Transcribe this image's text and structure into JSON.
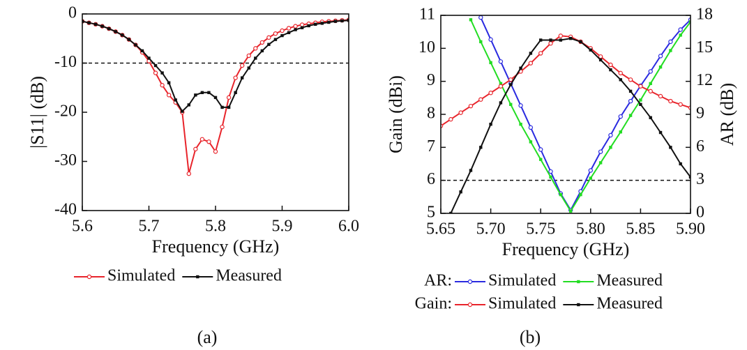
{
  "chart_data": [
    {
      "type": "line",
      "caption": "(a)",
      "xlabel": "Frequency (GHz)",
      "ylabel": "|S11| (dB)",
      "x": [
        5.6,
        5.61,
        5.62,
        5.63,
        5.64,
        5.65,
        5.66,
        5.67,
        5.68,
        5.69,
        5.7,
        5.71,
        5.72,
        5.73,
        5.74,
        5.75,
        5.76,
        5.77,
        5.78,
        5.79,
        5.8,
        5.81,
        5.82,
        5.83,
        5.84,
        5.85,
        5.86,
        5.87,
        5.88,
        5.89,
        5.9,
        5.91,
        5.92,
        5.93,
        5.94,
        5.95,
        5.96,
        5.97,
        5.98,
        5.99,
        6.0
      ],
      "xlim": [
        5.6,
        6.0
      ],
      "xticks": [
        5.6,
        5.7,
        5.8,
        5.9,
        {
          "value": 6.0,
          "label": "6.0"
        }
      ],
      "ylim": [
        -40,
        0
      ],
      "yticks": [
        0,
        -10,
        -20,
        -30,
        -40
      ],
      "hline": -10,
      "series": [
        {
          "name": "Simulated",
          "color": "#e8242b",
          "marker": "open",
          "values": [
            -1.5,
            -1.8,
            -2.1,
            -2.5,
            -3.0,
            -3.6,
            -4.3,
            -5.2,
            -6.3,
            -7.8,
            -9.6,
            -12,
            -14.5,
            -16.5,
            -18,
            -20,
            -32.5,
            -27.5,
            -25.5,
            -26,
            -28,
            -23,
            -17,
            -13,
            -10.5,
            -8.5,
            -7,
            -5.8,
            -4.8,
            -4,
            -3.4,
            -2.9,
            -2.5,
            -2.2,
            -2.0,
            -1.8,
            -1.6,
            -1.5,
            -1.4,
            -1.3,
            -1.2
          ]
        },
        {
          "name": "Measured",
          "color": "#111111",
          "marker": "filled",
          "values": [
            -1.5,
            -1.8,
            -2.1,
            -2.5,
            -3.0,
            -3.6,
            -4.3,
            -5.2,
            -6.3,
            -7.5,
            -9,
            -10.5,
            -12,
            -14,
            -17.5,
            -19.8,
            -18.5,
            -16.5,
            -16,
            -16,
            -17,
            -19,
            -19,
            -16,
            -13,
            -11,
            -9,
            -7.5,
            -6.2,
            -5.2,
            -4.4,
            -3.8,
            -3.2,
            -2.8,
            -2.4,
            -2.1,
            -1.9,
            -1.7,
            -1.5,
            -1.4,
            -1.3
          ]
        }
      ]
    },
    {
      "type": "line",
      "caption": "(b)",
      "xlabel": "Frequency (GHz)",
      "ylabel": "Gain (dBi)",
      "y2label": "AR (dB)",
      "x": [
        5.65,
        5.66,
        5.67,
        5.68,
        5.69,
        5.7,
        5.71,
        5.72,
        5.73,
        5.74,
        5.75,
        5.76,
        5.77,
        5.78,
        5.79,
        5.8,
        5.81,
        5.82,
        5.83,
        5.84,
        5.85,
        5.86,
        5.87,
        5.88,
        5.89,
        5.9
      ],
      "xlim": [
        5.65,
        5.9
      ],
      "xticks": [
        5.65,
        {
          "value": 5.7,
          "label": "5.70"
        },
        5.75,
        {
          "value": 5.8,
          "label": "5.80"
        },
        5.85,
        {
          "value": 5.9,
          "label": "5.90"
        }
      ],
      "ylim": [
        5,
        11
      ],
      "yticks": [
        5,
        6,
        7,
        8,
        9,
        10,
        11
      ],
      "y2lim": [
        0,
        18
      ],
      "y2ticks": [
        0,
        3,
        6,
        9,
        12,
        15,
        18
      ],
      "hline": 3,
      "hline_axis": "y2",
      "legend_groups": [
        "AR:",
        "Gain:"
      ],
      "series": [
        {
          "name": "Simulated",
          "color": "#2a2ae0",
          "marker": "open",
          "axis": "y2",
          "values": [
            null,
            null,
            null,
            null,
            17.8,
            15.8,
            13.8,
            11.8,
            9.8,
            7.8,
            5.8,
            3.8,
            1.8,
            0.3,
            2.0,
            3.9,
            5.6,
            7.1,
            8.8,
            10.2,
            11.6,
            12.9,
            14.3,
            15.6,
            16.7,
            17.6
          ]
        },
        {
          "name": "Measured",
          "color": "#22dd22",
          "marker": "filled",
          "axis": "y2",
          "values": [
            null,
            null,
            null,
            17.6,
            15.6,
            13.7,
            11.8,
            9.9,
            8.1,
            6.5,
            4.9,
            3.3,
            1.7,
            0.2,
            1.7,
            3.2,
            4.6,
            6.0,
            7.4,
            8.9,
            10.3,
            11.8,
            13.3,
            14.8,
            16.2,
            17.4
          ]
        },
        {
          "name": "Simulated",
          "color": "#e8242b",
          "marker": "open",
          "values": [
            7.65,
            7.85,
            8.05,
            8.25,
            8.45,
            8.65,
            8.85,
            9.05,
            9.3,
            9.55,
            9.85,
            10.15,
            10.38,
            10.35,
            10.2,
            10.0,
            9.75,
            9.5,
            9.25,
            9.05,
            8.85,
            8.7,
            8.55,
            8.4,
            8.3,
            8.2
          ]
        },
        {
          "name": "Measured",
          "color": "#111111",
          "marker": "filled",
          "values": [
            null,
            5.0,
            5.65,
            6.3,
            7.0,
            7.7,
            8.35,
            8.9,
            9.4,
            9.85,
            10.25,
            10.25,
            10.25,
            10.3,
            10.2,
            9.95,
            9.65,
            9.35,
            9.05,
            8.7,
            8.3,
            7.9,
            7.45,
            7.0,
            6.5,
            6.1
          ]
        }
      ]
    }
  ]
}
